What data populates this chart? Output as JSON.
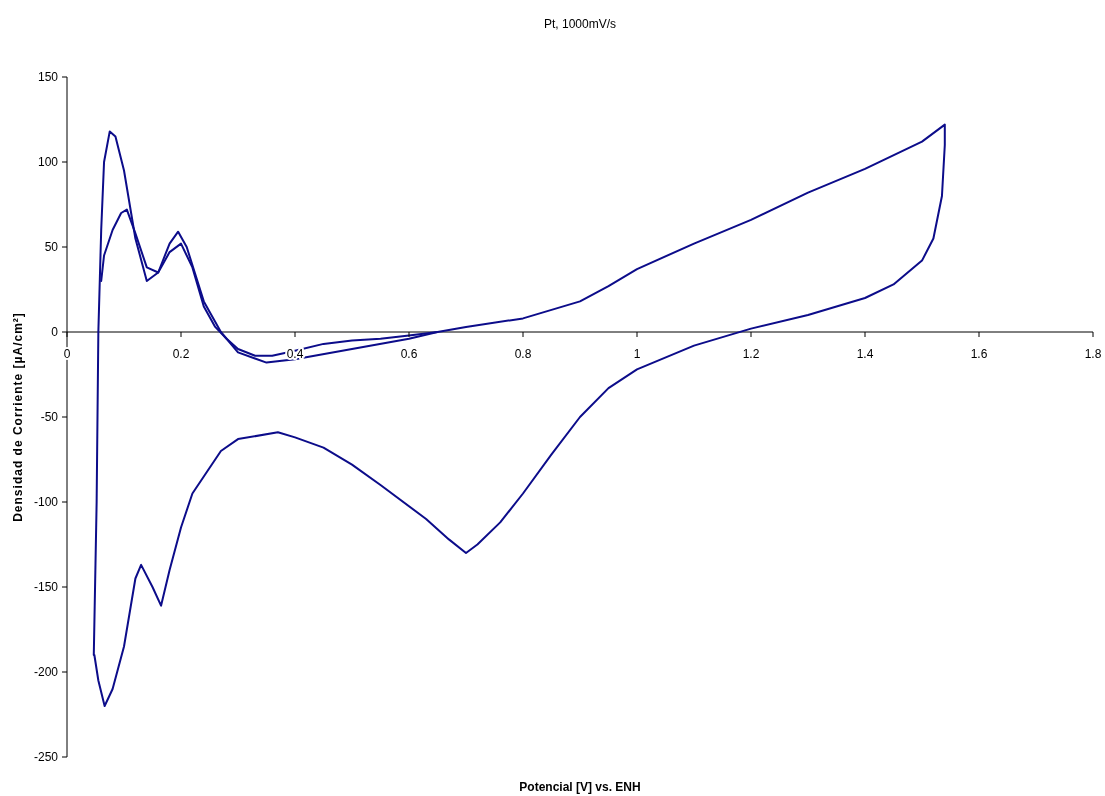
{
  "chart_data": {
    "type": "line",
    "title": "Pt, 1000mV/s",
    "xlabel": "Potencial [V] vs. ENH",
    "ylabel": "Densidad de Corriente [µA/cm²]",
    "xlim": [
      0,
      1.8
    ],
    "ylim": [
      -250,
      150
    ],
    "xticks": [
      0,
      0.2,
      0.4,
      0.6,
      0.8,
      1,
      1.2,
      1.4,
      1.6,
      1.8
    ],
    "yticks": [
      -250,
      -200,
      -150,
      -100,
      -50,
      0,
      50,
      100,
      150
    ],
    "grid": false,
    "marker": "none",
    "line_style": "solid",
    "series": [
      {
        "color": "#0c0c8a",
        "x": [
          0.047,
          0.052,
          0.055,
          0.06,
          0.065,
          0.075,
          0.085,
          0.1,
          0.12,
          0.14,
          0.16,
          0.18,
          0.2,
          0.22,
          0.24,
          0.26,
          0.28,
          0.3,
          0.33,
          0.36,
          0.4,
          0.45,
          0.5,
          0.55,
          0.6,
          0.65,
          0.7,
          0.8,
          0.9,
          0.95,
          1.0,
          1.1,
          1.2,
          1.3,
          1.4,
          1.5,
          1.54,
          1.54,
          1.535,
          1.52,
          1.5,
          1.45,
          1.4,
          1.3,
          1.2,
          1.1,
          1.0,
          0.95,
          0.9,
          0.85,
          0.8,
          0.76,
          0.72,
          0.7,
          0.67,
          0.63,
          0.55,
          0.5,
          0.45,
          0.4,
          0.37,
          0.3,
          0.27,
          0.24,
          0.22,
          0.2,
          0.18,
          0.165,
          0.15,
          0.13,
          0.12,
          0.1,
          0.08,
          0.066,
          0.055,
          0.048
        ],
        "values": [
          -190,
          -100,
          0,
          60,
          100,
          118,
          115,
          95,
          55,
          30,
          35,
          47,
          52,
          38,
          15,
          3,
          -4,
          -10,
          -14,
          -14,
          -11,
          -7,
          -5,
          -4,
          -2,
          0,
          3,
          8,
          18,
          27,
          37,
          52,
          66,
          82,
          96,
          112,
          122,
          110,
          80,
          55,
          42,
          28,
          20,
          10,
          2,
          -8,
          -22,
          -33,
          -50,
          -72,
          -95,
          -112,
          -125,
          -130,
          -122,
          -110,
          -90,
          -78,
          -68,
          -62,
          -59,
          -63,
          -70,
          -85,
          -95,
          -115,
          -140,
          -161,
          -150,
          -137,
          -145,
          -185,
          -210,
          -220,
          -205,
          -190
        ]
      },
      {
        "color": "#0c0c8a",
        "x": [
          0.06,
          0.065,
          0.08,
          0.095,
          0.105,
          0.12,
          0.14,
          0.16,
          0.18,
          0.195,
          0.21,
          0.24,
          0.27,
          0.3,
          0.35,
          0.4,
          0.5,
          0.6,
          0.65
        ],
        "values": [
          30,
          45,
          60,
          70,
          72,
          58,
          38,
          35,
          52,
          59,
          50,
          18,
          0,
          -12,
          -18,
          -16,
          -10,
          -4,
          0
        ]
      }
    ]
  }
}
